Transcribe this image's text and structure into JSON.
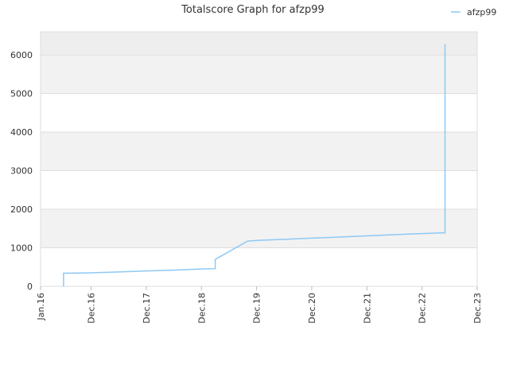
{
  "chart_data": {
    "type": "line",
    "title": "Totalscore Graph for afzp99",
    "x": [
      "2016-06",
      "2016-06",
      "2016-12",
      "2017-06",
      "2017-12",
      "2018-06",
      "2018-12",
      "2019-03",
      "2019-03",
      "2019-10",
      "2019-12",
      "2020-06",
      "2020-12",
      "2021-06",
      "2021-12",
      "2022-06",
      "2022-12",
      "2023-05",
      "2023-05",
      "2023-05"
    ],
    "series": [
      {
        "name": "afzp99",
        "color": "#8ec8f4",
        "values": [
          0,
          340,
          350,
          375,
          400,
          420,
          450,
          460,
          700,
          1170,
          1190,
          1220,
          1250,
          1280,
          1310,
          1340,
          1370,
          1390,
          1700,
          6280
        ]
      }
    ],
    "xlim": [
      "2016-01",
      "2023-12"
    ],
    "xticks": [
      {
        "value": "2016-01",
        "label": "Jan.16"
      },
      {
        "value": "2016-12",
        "label": "Dec.16"
      },
      {
        "value": "2017-12",
        "label": "Dec.17"
      },
      {
        "value": "2018-12",
        "label": "Dec.18"
      },
      {
        "value": "2019-12",
        "label": "Dec.19"
      },
      {
        "value": "2020-12",
        "label": "Dec.20"
      },
      {
        "value": "2021-12",
        "label": "Dec.21"
      },
      {
        "value": "2022-12",
        "label": "Dec.22"
      },
      {
        "value": "2023-12",
        "label": "Dec.23"
      }
    ],
    "ylim": [
      0,
      6600
    ],
    "yticks": [
      0,
      1000,
      2000,
      3000,
      4000,
      5000,
      6000
    ],
    "grid": true,
    "legend": "top-right"
  }
}
